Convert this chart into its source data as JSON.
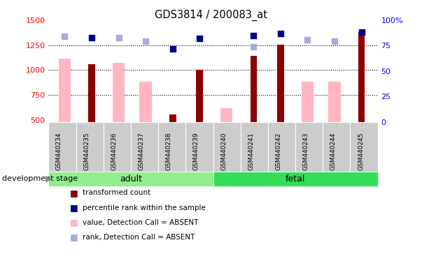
{
  "title": "GDS3814 / 200083_at",
  "samples": [
    "GSM440234",
    "GSM440235",
    "GSM440236",
    "GSM440237",
    "GSM440238",
    "GSM440239",
    "GSM440240",
    "GSM440241",
    "GSM440242",
    "GSM440243",
    "GSM440244",
    "GSM440245"
  ],
  "n_adult": 6,
  "n_fetal": 6,
  "transformed_count": [
    null,
    1055,
    null,
    null,
    555,
    1000,
    null,
    1140,
    1255,
    null,
    null,
    1380
  ],
  "percentile_rank": [
    null,
    83,
    null,
    null,
    72,
    82,
    null,
    85,
    87,
    null,
    null,
    88
  ],
  "value_absent": [
    1115,
    null,
    1075,
    880,
    null,
    null,
    620,
    null,
    null,
    880,
    880,
    null
  ],
  "rank_absent": [
    84,
    null,
    83,
    79,
    null,
    null,
    null,
    74,
    null,
    81,
    79,
    null
  ],
  "ylim_left": [
    480,
    1500
  ],
  "ylim_right": [
    0,
    100
  ],
  "yticks_left": [
    500,
    750,
    1000,
    1250,
    1500
  ],
  "yticks_right": [
    0,
    25,
    50,
    75,
    100
  ],
  "ytick_labels_right": [
    "0",
    "25",
    "50",
    "75",
    "100%"
  ],
  "color_dark_red": "#8B0000",
  "color_dark_blue": "#00008B",
  "color_light_pink": "#FFB6C1",
  "color_light_blue": "#AAAADD",
  "color_adult_bg": "#90EE90",
  "color_fetal_bg": "#33DD55",
  "color_sample_box": "#CCCCCC",
  "background_color": "#FFFFFF",
  "legend_items": [
    "transformed count",
    "percentile rank within the sample",
    "value, Detection Call = ABSENT",
    "rank, Detection Call = ABSENT"
  ]
}
